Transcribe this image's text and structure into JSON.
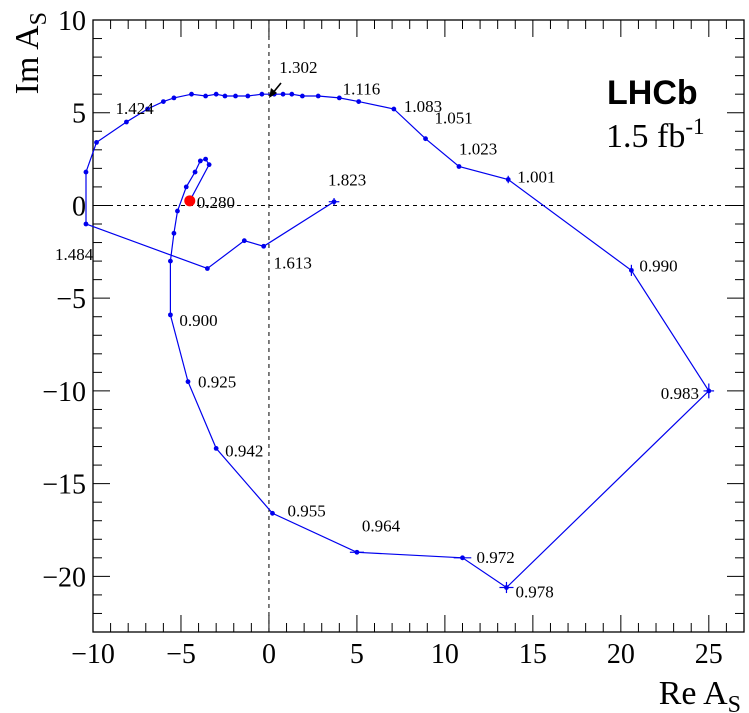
{
  "chart_data": {
    "type": "scatter",
    "experiment": "LHCb",
    "luminosity_value": "1.5 fb",
    "luminosity_exp": "-1",
    "xlabel": "Re A",
    "xlabel_sub": "S",
    "ylabel": "Im A",
    "ylabel_sub": "S",
    "xlim": [
      -10,
      27
    ],
    "ylim": [
      -23,
      10
    ],
    "x_ticks": [
      -10,
      -5,
      0,
      5,
      10,
      15,
      20,
      25
    ],
    "y_ticks": [
      -20,
      -15,
      -10,
      -5,
      0,
      5,
      10
    ],
    "grid": false,
    "dashed_reference_lines": {
      "x": 0,
      "y": 0
    },
    "series_color": "#0000ee",
    "highlight_color": "#ff0000",
    "highlight_point": {
      "x": -4.5,
      "y": 0.25
    },
    "points": [
      {
        "x": -4.5,
        "y": 0.25,
        "label": "0.280"
      },
      {
        "x": -3.4,
        "y": 2.2
      },
      {
        "x": -3.6,
        "y": 2.5
      },
      {
        "x": -3.9,
        "y": 2.4
      },
      {
        "x": -4.2,
        "y": 1.8
      },
      {
        "x": -4.7,
        "y": 1.0
      },
      {
        "x": -5.2,
        "y": -0.3
      },
      {
        "x": -5.4,
        "y": -1.5
      },
      {
        "x": -5.6,
        "y": -3.0
      },
      {
        "x": -5.6,
        "y": -5.9,
        "label": "0.900"
      },
      {
        "x": -4.6,
        "y": -9.5,
        "label": "0.925"
      },
      {
        "x": -3.0,
        "y": -13.1,
        "label": "0.942"
      },
      {
        "x": 0.2,
        "y": -16.6,
        "label": "0.955"
      },
      {
        "x": 5.0,
        "y": -18.7,
        "label": "0.964",
        "ex": 0.4
      },
      {
        "x": 11.0,
        "y": -19.0,
        "label": "0.972",
        "ex": 0.5
      },
      {
        "x": 13.5,
        "y": -20.6,
        "label": "0.978",
        "ex": 0.4,
        "ey": 0.3
      },
      {
        "x": 25.0,
        "y": -10.0,
        "label": "0.983",
        "ex": 0.3,
        "ey": 0.4
      },
      {
        "x": 20.6,
        "y": -3.5,
        "label": "0.990",
        "ey": 0.3
      },
      {
        "x": 13.6,
        "y": 1.4,
        "label": "1.001",
        "ey": 0.2
      },
      {
        "x": 10.8,
        "y": 2.1,
        "label": "1.023"
      },
      {
        "x": 8.9,
        "y": 3.6,
        "label": "1.051"
      },
      {
        "x": 7.1,
        "y": 5.2,
        "label": "1.083"
      },
      {
        "x": 5.1,
        "y": 5.6,
        "label": "1.116"
      },
      {
        "x": 4.0,
        "y": 5.8
      },
      {
        "x": 2.8,
        "y": 5.9
      },
      {
        "x": 1.9,
        "y": 5.9
      },
      {
        "x": 1.3,
        "y": 6.0
      },
      {
        "x": 0.8,
        "y": 6.0
      },
      {
        "x": 0.3,
        "y": 6.0,
        "label": "1.302"
      },
      {
        "x": -0.4,
        "y": 6.0
      },
      {
        "x": -1.2,
        "y": 5.9
      },
      {
        "x": -1.9,
        "y": 5.9
      },
      {
        "x": -2.5,
        "y": 5.9
      },
      {
        "x": -3.0,
        "y": 6.0
      },
      {
        "x": -3.6,
        "y": 5.9
      },
      {
        "x": -4.4,
        "y": 6.0
      },
      {
        "x": -5.4,
        "y": 5.8
      },
      {
        "x": -6.0,
        "y": 5.6
      },
      {
        "x": -6.9,
        "y": 5.2,
        "label": "1.424"
      },
      {
        "x": -8.1,
        "y": 4.5
      },
      {
        "x": -9.8,
        "y": 3.4
      },
      {
        "x": -10.4,
        "y": 1.8
      },
      {
        "x": -10.4,
        "y": -1.0,
        "label": "1.484"
      },
      {
        "x": -3.5,
        "y": -3.4
      },
      {
        "x": -1.4,
        "y": -1.9
      },
      {
        "x": -0.3,
        "y": -2.2,
        "label": "1.613"
      },
      {
        "x": 3.7,
        "y": 0.2,
        "label": "1.823",
        "ex": 0.3,
        "ey": 0.2
      }
    ]
  }
}
